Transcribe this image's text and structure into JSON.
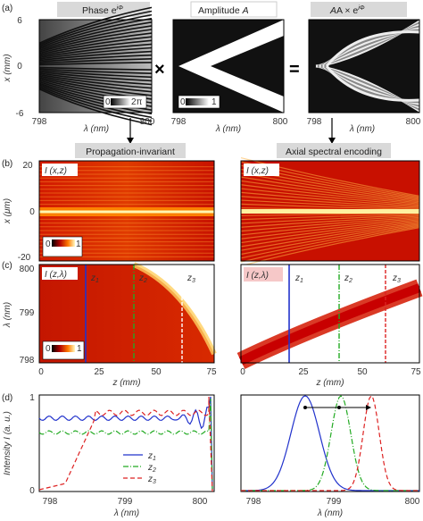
{
  "panels": {
    "a": "(a)",
    "b": "(b)",
    "c": "(c)",
    "d": "(d)"
  },
  "row_a": {
    "titles": [
      "Phase e",
      "Amplitude ",
      "A × e"
    ],
    "title_sup": "iΦ",
    "amp_italic": "A",
    "a_italic": "A",
    "operators": [
      "×",
      "="
    ],
    "y_axis": {
      "label": "x (mm)",
      "ticks": [
        "6",
        "0",
        "-6"
      ]
    },
    "x_axis": {
      "label": "λ (nm)",
      "ticks": [
        "798",
        "800"
      ]
    },
    "x_ticks_last": "800",
    "phase_colorbar": {
      "min": "0",
      "max": "2π"
    },
    "amp_colorbar": {
      "min": "0",
      "max": "1"
    }
  },
  "arrows": {
    "left_label": "Propagation-invariant",
    "right_label": "Axial spectral encoding"
  },
  "row_b": {
    "left_label": "I (x,z)",
    "right_label": "I (x,z)",
    "y_axis": {
      "label": "x (μm)",
      "ticks": [
        "20",
        "0",
        "-20"
      ]
    },
    "colorbar": {
      "min": "0",
      "max": "1"
    }
  },
  "row_c": {
    "left_label": "I (z,λ)",
    "right_label": "I (z,λ)",
    "y_axis": {
      "label": "λ (nm)",
      "ticks": [
        "800",
        "799",
        "798"
      ]
    },
    "x_axis": {
      "label": "z (mm)",
      "ticks": [
        "0",
        "25",
        "50",
        "75"
      ]
    },
    "z_labels": [
      "z1",
      "z2",
      "z3"
    ],
    "z_sub": [
      "1",
      "2",
      "3"
    ],
    "colorbar": {
      "min": "0",
      "max": "1"
    }
  },
  "row_d": {
    "y_axis": {
      "label": "Intensity I (a. u.)",
      "ticks": [
        "1",
        "0"
      ]
    },
    "x_axis": {
      "label": "λ (nm)",
      "ticks_left": [
        "798",
        "799",
        "800"
      ],
      "ticks_right": [
        "798",
        "799",
        "800"
      ]
    },
    "legend": [
      "z1",
      "z2",
      "z3"
    ],
    "colors": {
      "z1": "#2233cc",
      "z2": "#22aa22",
      "z3": "#dd2222"
    }
  }
}
